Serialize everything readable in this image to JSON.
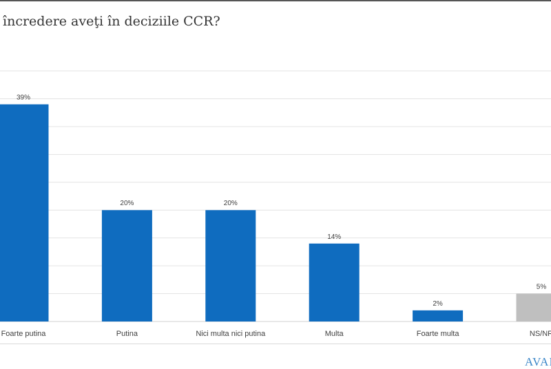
{
  "chart_data": {
    "type": "bar",
    "title": "încredere aveţi în deciziile CCR?",
    "categories": [
      "Foarte putina",
      "Putina",
      "Nici multa nici putina",
      "Multa",
      "Foarte multa",
      "NS/NR"
    ],
    "values": [
      39,
      20,
      20,
      14,
      2,
      5
    ],
    "data_labels": [
      "39%",
      "20%",
      "20%",
      "14%",
      "2%",
      "5%"
    ],
    "bar_colors": [
      "#0f6cbf",
      "#0f6cbf",
      "#0f6cbf",
      "#0f6cbf",
      "#0f6cbf",
      "#bfbfbf"
    ],
    "ylim": [
      0,
      45
    ],
    "grid": true,
    "xlabel": "",
    "ylabel": ""
  },
  "logo_text": "AVANGARDE"
}
